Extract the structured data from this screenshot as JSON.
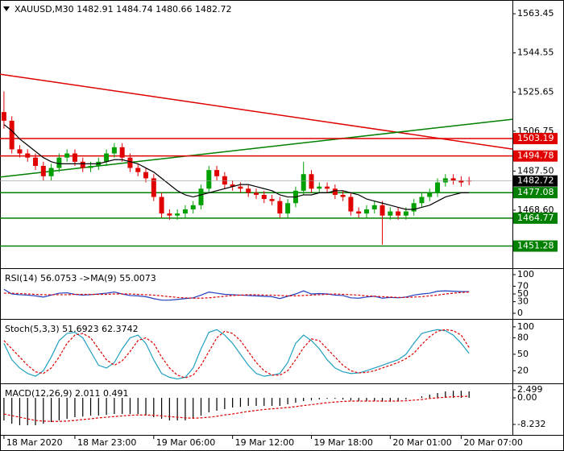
{
  "chart_data": [
    {
      "type": "candlestick",
      "title": "XAUUSD,M30  1482.91 1484.74 1480.66 1482.72",
      "ylim": [
        1440.6,
        1570.1
      ],
      "yticks": [
        1563.45,
        1544.55,
        1525.65,
        1506.75,
        {
          "value": 1487.5,
          "label": "1487.50"
        },
        {
          "value": 1468.6,
          "label": "1468.60"
        }
      ],
      "xlim": [
        -0.5,
        64.5
      ],
      "xticks": [
        {
          "value": 0,
          "label": "18 Mar 2020"
        },
        {
          "value": 9,
          "label": "18 Mar 23:00"
        },
        {
          "value": 19,
          "label": "19 Mar 06:00"
        },
        {
          "value": 29,
          "label": "19 Mar 12:00"
        },
        {
          "value": 39,
          "label": "19 Mar 18:00"
        },
        {
          "value": 49,
          "label": "20 Mar 01:00"
        },
        {
          "value": 58,
          "label": "20 Mar 07:00"
        }
      ],
      "up_color": "#00a000",
      "down_color": "#e00000",
      "open": [
        1516,
        1511.8,
        1498,
        1496,
        1494,
        1490,
        1485,
        1489,
        1494,
        1496,
        1492,
        1489,
        1490,
        1492,
        1496,
        1499,
        1494,
        1489,
        1487,
        1484,
        1475,
        1467,
        1466,
        1467,
        1469,
        1471,
        1479,
        1488,
        1485,
        1481,
        1480,
        1479,
        1477,
        1476,
        1474,
        1473,
        1467,
        1472,
        1478,
        1486,
        1479,
        1480,
        1479,
        1476,
        1475,
        1468,
        1467,
        1469,
        1471,
        1466,
        1468,
        1466,
        1468,
        1472,
        1475,
        1477,
        1482,
        1484,
        1483,
        1482.91
      ],
      "high": [
        1526,
        1514,
        1500,
        1498,
        1496,
        1492,
        1491,
        1496,
        1498,
        1498,
        1494,
        1492,
        1494,
        1498,
        1501,
        1501,
        1496,
        1491,
        1489,
        1486,
        1477,
        1469,
        1469,
        1471,
        1473,
        1481,
        1490,
        1490,
        1487,
        1483,
        1482,
        1481,
        1479,
        1478,
        1476,
        1475,
        1474,
        1480,
        1492,
        1488,
        1482,
        1482,
        1481,
        1478,
        1477,
        1470,
        1471,
        1473,
        1473,
        1470,
        1470,
        1470,
        1474,
        1477,
        1479,
        1484,
        1486,
        1486,
        1485,
        1484.74
      ],
      "low": [
        1508,
        1496,
        1494,
        1492,
        1488,
        1483,
        1483,
        1487,
        1492,
        1490,
        1487,
        1487,
        1488,
        1490,
        1494,
        1492,
        1487,
        1485,
        1482,
        1473,
        1465,
        1464,
        1464,
        1465,
        1467,
        1469,
        1477,
        1483,
        1479,
        1478,
        1477,
        1475,
        1474,
        1472,
        1471,
        1465,
        1465,
        1470,
        1476,
        1477,
        1477,
        1477,
        1474,
        1473,
        1466,
        1465,
        1465,
        1467,
        1452,
        1464,
        1464,
        1464,
        1466,
        1470,
        1473,
        1475,
        1480,
        1481,
        1480,
        1480.66
      ],
      "close": [
        1511.8,
        1498,
        1496,
        1494,
        1490,
        1485,
        1489,
        1494,
        1496,
        1492,
        1489,
        1490,
        1492,
        1496,
        1499,
        1494,
        1489,
        1487,
        1484,
        1475,
        1467,
        1466,
        1467,
        1469,
        1471,
        1479,
        1488,
        1485,
        1481,
        1480,
        1479,
        1477,
        1476,
        1474,
        1473,
        1467,
        1472,
        1478,
        1486,
        1479,
        1480,
        1479,
        1476,
        1475,
        1468,
        1467,
        1469,
        1471,
        1466,
        1468,
        1466,
        1468,
        1472,
        1475,
        1477,
        1482,
        1484,
        1483,
        1482,
        1482.72
      ],
      "series": [
        {
          "color": "#000000",
          "values": [
            1510,
            1507,
            1503,
            1500,
            1497,
            1494,
            1492,
            1491,
            1491,
            1491,
            1491,
            1491,
            1491,
            1492,
            1493,
            1493,
            1492,
            1491,
            1489,
            1487,
            1484,
            1481,
            1478,
            1476,
            1475,
            1476,
            1477,
            1478,
            1479,
            1480,
            1481,
            1481,
            1480,
            1479,
            1478,
            1476,
            1475,
            1475,
            1476,
            1476,
            1477,
            1477,
            1478,
            1478,
            1477,
            1476,
            1474,
            1473,
            1472,
            1471,
            1470,
            1469,
            1469,
            1470,
            1471,
            1473,
            1475,
            1476,
            1477,
            1477
          ]
        }
      ],
      "levels": [
        {
          "value": 1503.19,
          "color": "#e00000"
        },
        {
          "value": 1494.78,
          "color": "#e00000"
        },
        {
          "value": 1477.08,
          "color": "#008000"
        },
        {
          "value": 1464.77,
          "color": "#008000"
        },
        {
          "value": 1451.28,
          "color": "#008000"
        }
      ],
      "trendlines": [
        {
          "start": 1534.3,
          "end": 1498.1,
          "color": "#e00000"
        },
        {
          "start": 1484.6,
          "end": 1512.5,
          "color": "#008000"
        }
      ],
      "last": 1482.72
    },
    {
      "type": "line",
      "title": "RSI(14) 56.0753 ->MA(9) 55.0073",
      "ylim": [
        -14.6,
        114.6
      ],
      "yticks": [
        100,
        70,
        50,
        30,
        0
      ],
      "xlim": [
        -0.5,
        64.5
      ],
      "series": [
        {
          "color": "#1f3fbf",
          "values": [
            62,
            50,
            48,
            47,
            45,
            42,
            47,
            52,
            53,
            49,
            47,
            48,
            50,
            52,
            55,
            50,
            46,
            45,
            43,
            38,
            34,
            34,
            36,
            38,
            40,
            47,
            55,
            52,
            49,
            48,
            47,
            46,
            45,
            44,
            43,
            38,
            44,
            50,
            58,
            50,
            51,
            50,
            47,
            46,
            40,
            39,
            42,
            44,
            39,
            41,
            40,
            42,
            47,
            50,
            52,
            57,
            58,
            57,
            56,
            56.0753
          ]
        },
        {
          "color": "#e00000",
          "dash": true,
          "values": [
            52,
            52,
            51,
            50,
            49,
            48,
            48,
            48,
            48,
            49,
            49,
            49,
            49,
            49,
            50,
            50,
            50,
            49,
            48,
            47,
            45,
            43,
            41,
            40,
            39,
            39,
            40,
            42,
            44,
            46,
            47,
            48,
            48,
            47,
            47,
            46,
            45,
            45,
            46,
            47,
            48,
            49,
            50,
            49,
            48,
            47,
            45,
            44,
            43,
            42,
            41,
            41,
            42,
            43,
            45,
            47,
            50,
            52,
            54,
            55.0073
          ]
        }
      ]
    },
    {
      "type": "line",
      "title": "Stoch(5,3,3) 51.6923 62.3742",
      "ylim": [
        -3,
        113
      ],
      "yticks": [
        100,
        80,
        50,
        20
      ],
      "xlim": [
        -0.5,
        64.5
      ],
      "series": [
        {
          "color": "#20a0c0",
          "values": [
            70,
            40,
            25,
            15,
            10,
            20,
            45,
            75,
            88,
            90,
            80,
            55,
            30,
            25,
            35,
            60,
            80,
            85,
            70,
            40,
            15,
            8,
            5,
            8,
            25,
            60,
            90,
            95,
            85,
            70,
            50,
            30,
            15,
            10,
            12,
            15,
            35,
            70,
            85,
            75,
            60,
            40,
            25,
            18,
            15,
            16,
            20,
            25,
            30,
            35,
            40,
            50,
            70,
            88,
            92,
            95,
            93,
            85,
            70,
            51.6923
          ]
        },
        {
          "color": "#e00000",
          "dash": true,
          "values": [
            75,
            60,
            45,
            30,
            18,
            15,
            25,
            45,
            70,
            85,
            88,
            80,
            60,
            40,
            30,
            38,
            55,
            75,
            80,
            70,
            45,
            25,
            12,
            7,
            12,
            30,
            55,
            80,
            92,
            88,
            75,
            55,
            35,
            20,
            12,
            12,
            20,
            40,
            62,
            78,
            75,
            60,
            45,
            30,
            20,
            16,
            17,
            20,
            25,
            30,
            35,
            42,
            52,
            68,
            82,
            92,
            95,
            93,
            85,
            62.3742
          ]
        }
      ]
    },
    {
      "type": "macd",
      "title": "MACD(12,26,9) 2.011 0.491",
      "ylim": [
        -11.48,
        4.25
      ],
      "yticks": [
        2.499,
        {
          "value": 0,
          "label": "0.00"
        },
        -8.232
      ],
      "xlim": [
        -0.5,
        64.5
      ],
      "color": "#000000",
      "values": [
        -7,
        -8,
        -8.5,
        -8.5,
        -8.5,
        -8,
        -7.5,
        -7,
        -6.5,
        -6,
        -5.8,
        -5.5,
        -5.5,
        -5.3,
        -5,
        -5,
        -5,
        -5,
        -5.5,
        -6,
        -6.5,
        -7,
        -7,
        -7,
        -6.5,
        -5.5,
        -4.5,
        -4,
        -3.5,
        -3,
        -2.8,
        -2.5,
        -2.5,
        -2.5,
        -2.5,
        -2.5,
        -2,
        -1.5,
        -1,
        -0.8,
        -0.5,
        -0.3,
        -0.3,
        -0.5,
        -0.8,
        -1,
        -1,
        -1,
        -1.2,
        -1.2,
        -1,
        -0.5,
        0,
        0.5,
        1,
        1.5,
        2,
        2.2,
        2.2,
        2.011
      ],
      "series": [
        {
          "color": "#e00000",
          "dash": true,
          "values": [
            -5,
            -5.5,
            -6,
            -6.5,
            -7,
            -7.2,
            -7.3,
            -7.3,
            -7.2,
            -7,
            -6.7,
            -6.5,
            -6.2,
            -6,
            -5.8,
            -5.6,
            -5.4,
            -5.3,
            -5.3,
            -5.4,
            -5.6,
            -5.8,
            -6,
            -6.2,
            -6.3,
            -6.2,
            -6,
            -5.7,
            -5.3,
            -5,
            -4.6,
            -4.2,
            -3.9,
            -3.6,
            -3.4,
            -3.2,
            -3,
            -2.7,
            -2.4,
            -2.1,
            -1.8,
            -1.5,
            -1.3,
            -1.1,
            -1,
            -1,
            -1,
            -1,
            -1,
            -1,
            -1,
            -0.9,
            -0.7,
            -0.5,
            -0.2,
            0,
            0.2,
            0.35,
            0.45,
            0.491
          ]
        }
      ]
    }
  ]
}
